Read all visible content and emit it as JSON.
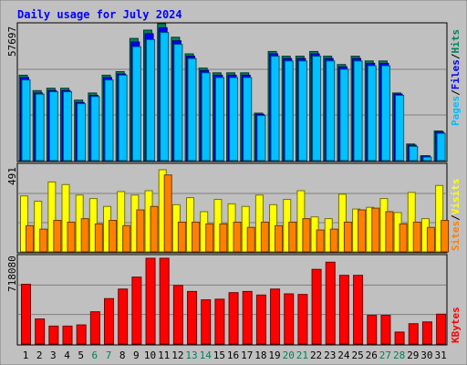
{
  "chart_data": {
    "type": "bar",
    "title": "Daily usage for July 2024",
    "days": [
      "1",
      "2",
      "3",
      "4",
      "5",
      "6",
      "7",
      "8",
      "9",
      "10",
      "11",
      "12",
      "13",
      "14",
      "15",
      "16",
      "17",
      "18",
      "19",
      "20",
      "21",
      "22",
      "23",
      "24",
      "25",
      "26",
      "27",
      "28",
      "29",
      "30",
      "31"
    ],
    "weekend_days": [
      "6",
      "7",
      "13",
      "14",
      "20",
      "21",
      "27",
      "28"
    ],
    "panels": {
      "top": {
        "max_label": "57697",
        "ylim": [
          0,
          57697
        ],
        "legend": [
          "Pages",
          "/",
          "Files",
          "/",
          "Hits"
        ],
        "series": [
          {
            "name": "Hits",
            "color": "#00805c",
            "values": [
              36000,
              29500,
              30500,
              30500,
              25500,
              28500,
              36000,
              37500,
              51500,
              55000,
              57697,
              52000,
              45000,
              39000,
              37000,
              37000,
              37000,
              20000,
              46000,
              44000,
              44000,
              46000,
              44000,
              40500,
              44000,
              42000,
              42000,
              28500,
              7000,
              2000,
              12500
            ]
          },
          {
            "name": "Files",
            "color": "#0000ff",
            "values": [
              35000,
              28500,
              29500,
              29500,
              24500,
              27500,
              35000,
              36500,
              50000,
              53500,
              56000,
              50500,
              44000,
              38000,
              36000,
              36000,
              36000,
              19500,
              45000,
              43000,
              43000,
              45000,
              43000,
              39500,
              43000,
              41000,
              41000,
              28000,
              6500,
              2000,
              12000
            ]
          },
          {
            "name": "Pages",
            "color": "#00c0ff",
            "values": [
              34000,
              28000,
              29000,
              29000,
              24000,
              27000,
              34000,
              36000,
              48000,
              51000,
              54000,
              49000,
              43000,
              37000,
              35000,
              35000,
              35000,
              19000,
              44000,
              42000,
              42000,
              44000,
              42000,
              38500,
              42000,
              40000,
              40000,
              27500,
              6000,
              1500,
              11500
            ]
          }
        ]
      },
      "middle": {
        "max_label": "491",
        "ylim": [
          0,
          491
        ],
        "legend": [
          "Sites",
          "/",
          "Visits"
        ],
        "series": [
          {
            "name": "Visits",
            "color": "#ffff00",
            "values": [
              320,
              290,
              400,
              385,
              325,
              305,
              260,
              345,
              325,
              350,
              470,
              270,
              310,
              230,
              300,
              275,
              260,
              325,
              270,
              300,
              350,
              200,
              190,
              330,
              245,
              255,
              305,
              225,
              340,
              190,
              380
            ]
          },
          {
            "name": "Sites",
            "color": "#ff8000",
            "values": [
              150,
              130,
              180,
              170,
              190,
              160,
              180,
              150,
              240,
              260,
              440,
              170,
              170,
              160,
              160,
              170,
              140,
              170,
              150,
              170,
              190,
              125,
              130,
              170,
              240,
              250,
              230,
              160,
              170,
              140,
              180
            ]
          }
        ]
      },
      "bottom": {
        "max_label": "718080",
        "ylim": [
          0,
          718080
        ],
        "legend": [
          "KBytes"
        ],
        "series": [
          {
            "name": "KBytes",
            "color": "#ff0000",
            "values": [
              500000,
              210000,
              150000,
              150000,
              160000,
              270000,
              380000,
              460000,
              560000,
              718080,
              718080,
              490000,
              440000,
              370000,
              375000,
              430000,
              440000,
              410000,
              460000,
              420000,
              415000,
              625000,
              685000,
              575000,
              575000,
              240000,
              240000,
              100000,
              170000,
              185000,
              250000
            ]
          }
        ]
      }
    }
  }
}
